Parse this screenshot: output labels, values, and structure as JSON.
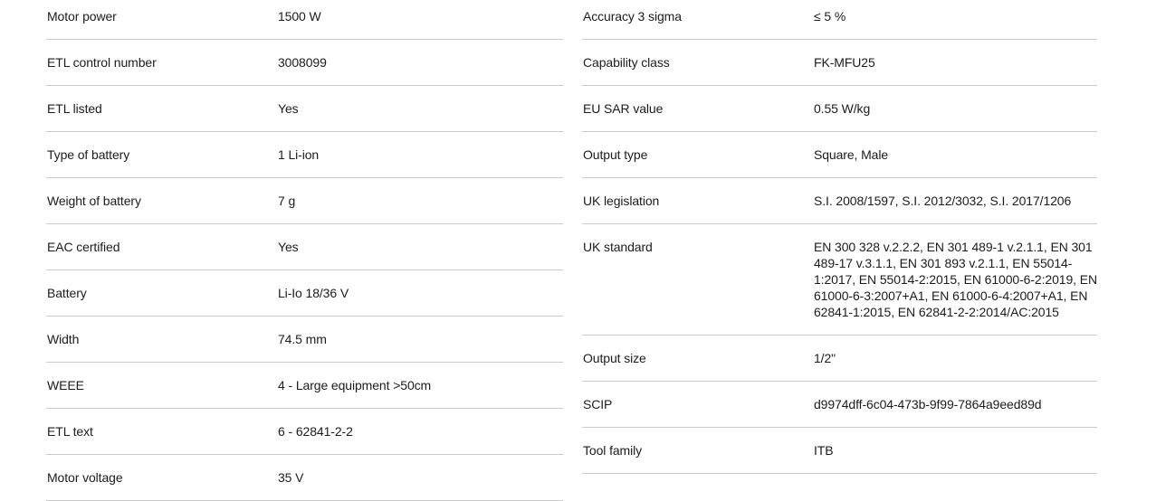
{
  "page": {
    "background_color": "#ffffff",
    "text_color": "#1c1c1c",
    "divider_color": "#cbcbcb"
  },
  "spec_tables": {
    "left": {
      "rows": [
        {
          "label": "Motor power",
          "value": "1500 W"
        },
        {
          "label": "ETL control number",
          "value": "3008099"
        },
        {
          "label": "ETL listed",
          "value": "Yes"
        },
        {
          "label": "Type of battery",
          "value": "1 Li-ion"
        },
        {
          "label": "Weight of battery",
          "value": "7 g"
        },
        {
          "label": "EAC certified",
          "value": "Yes"
        },
        {
          "label": "Battery",
          "value": "Li-Io 18/36 V"
        },
        {
          "label": "Width",
          "value": "74.5 mm"
        },
        {
          "label": "WEEE",
          "value": "4 - Large equipment >50cm"
        },
        {
          "label": "ETL text",
          "value": "6 - 62841-2-2"
        },
        {
          "label": "Motor voltage",
          "value": "35 V"
        }
      ]
    },
    "right": {
      "rows": [
        {
          "label": "Accuracy 3 sigma",
          "value": "≤ 5 %"
        },
        {
          "label": "Capability class",
          "value": "FK-MFU25"
        },
        {
          "label": "EU SAR value",
          "value": "0.55 W/kg"
        },
        {
          "label": "Output type",
          "value": "Square, Male"
        },
        {
          "label": "UK legislation",
          "value": "S.I. 2008/1597, S.I. 2012/3032, S.I. 2017/1206"
        },
        {
          "label": "UK standard",
          "value": "EN 300 328 v.2.2.2, EN 301 489-1 v.2.1.1, EN 301 489-17 v.3.1.1, EN 301 893 v.2.1.1, EN 55014-1:2017, EN 55014-2:2015, EN 61000-6-2:2019, EN 61000-6-3:2007+A1, EN 61000-6-4:2007+A1, EN 62841-1:2015, EN 62841-2-2:2014/AC:2015"
        },
        {
          "label": "Output size",
          "value": "1/2\""
        },
        {
          "label": "SCIP",
          "value": "d9974dff-6c04-473b-9f99-7864a9eed89d"
        },
        {
          "label": "Tool family",
          "value": "ITB"
        }
      ]
    }
  }
}
